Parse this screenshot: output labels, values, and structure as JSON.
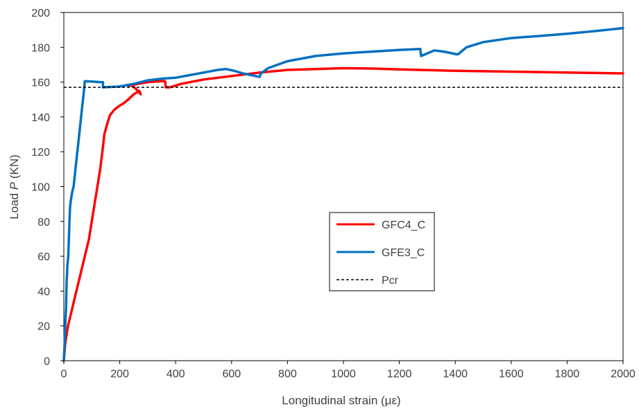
{
  "chart_data": {
    "type": "line",
    "xlabel": "Longitudinal strain (με)",
    "ylabel": {
      "prefix": "Load ",
      "italic": "P",
      "suffix": " (KN)"
    },
    "xlim": [
      0,
      2000
    ],
    "ylim": [
      0,
      200
    ],
    "x_ticks": [
      "0",
      "200",
      "400",
      "600",
      "800",
      "1000",
      "1200",
      "1400",
      "1600",
      "1800",
      "2000"
    ],
    "y_ticks": [
      "0",
      "20",
      "40",
      "60",
      "80",
      "100",
      "120",
      "140",
      "160",
      "180",
      "200"
    ],
    "grid": false,
    "legend_position": "center-right",
    "series": [
      {
        "name": "GFC4_C",
        "color": "#ff0000",
        "style": "solid",
        "points": [
          [
            0,
            0
          ],
          [
            5,
            10
          ],
          [
            15,
            20
          ],
          [
            30,
            30
          ],
          [
            45,
            40
          ],
          [
            60,
            50
          ],
          [
            75,
            60
          ],
          [
            90,
            70
          ],
          [
            100,
            80
          ],
          [
            110,
            90
          ],
          [
            120,
            100
          ],
          [
            130,
            110
          ],
          [
            138,
            120
          ],
          [
            145,
            130
          ],
          [
            155,
            136
          ],
          [
            165,
            141
          ],
          [
            180,
            144
          ],
          [
            195,
            146
          ],
          [
            215,
            148
          ],
          [
            230,
            150
          ],
          [
            250,
            153
          ],
          [
            270,
            155
          ],
          [
            275,
            153
          ],
          [
            265,
            155
          ],
          [
            245,
            158
          ],
          [
            230,
            158
          ],
          [
            300,
            160
          ],
          [
            350,
            160.5
          ],
          [
            362,
            160.5
          ],
          [
            365,
            157
          ],
          [
            380,
            157
          ],
          [
            420,
            159
          ],
          [
            500,
            161.5
          ],
          [
            600,
            163.5
          ],
          [
            700,
            165.5
          ],
          [
            800,
            167
          ],
          [
            900,
            167.5
          ],
          [
            1000,
            168
          ],
          [
            1100,
            167.8
          ],
          [
            1200,
            167.3
          ],
          [
            1400,
            166.5
          ],
          [
            1600,
            166
          ],
          [
            1800,
            165.5
          ],
          [
            2000,
            165
          ]
        ]
      },
      {
        "name": "GFE3_C",
        "color": "#0070c0",
        "style": "solid",
        "points": [
          [
            0,
            0
          ],
          [
            3,
            10
          ],
          [
            5,
            20
          ],
          [
            8,
            30
          ],
          [
            10,
            45
          ],
          [
            13,
            55
          ],
          [
            16,
            60
          ],
          [
            18,
            70
          ],
          [
            20,
            80
          ],
          [
            22,
            88
          ],
          [
            25,
            92
          ],
          [
            30,
            97
          ],
          [
            35,
            100
          ],
          [
            45,
            115
          ],
          [
            55,
            130
          ],
          [
            65,
            145
          ],
          [
            72,
            155
          ],
          [
            75,
            160.5
          ],
          [
            100,
            160.3
          ],
          [
            130,
            160
          ],
          [
            140,
            160
          ],
          [
            140,
            157
          ],
          [
            200,
            157.5
          ],
          [
            250,
            159
          ],
          [
            300,
            161
          ],
          [
            350,
            162
          ],
          [
            400,
            162.5
          ],
          [
            450,
            164
          ],
          [
            500,
            165.5
          ],
          [
            550,
            167
          ],
          [
            580,
            167.5
          ],
          [
            610,
            166.5
          ],
          [
            640,
            165
          ],
          [
            670,
            164
          ],
          [
            700,
            163
          ],
          [
            705,
            165
          ],
          [
            730,
            168
          ],
          [
            800,
            172
          ],
          [
            900,
            175
          ],
          [
            1000,
            176.5
          ],
          [
            1100,
            177.5
          ],
          [
            1200,
            178.5
          ],
          [
            1275,
            179
          ],
          [
            1278,
            175
          ],
          [
            1300,
            176.5
          ],
          [
            1325,
            178.2
          ],
          [
            1360,
            177.5
          ],
          [
            1405,
            176
          ],
          [
            1410,
            176
          ],
          [
            1440,
            180
          ],
          [
            1500,
            183
          ],
          [
            1600,
            185.3
          ],
          [
            1700,
            186.5
          ],
          [
            1800,
            187.8
          ],
          [
            1900,
            189.3
          ],
          [
            2000,
            191
          ]
        ]
      },
      {
        "name": "Pcr",
        "color": "#000000",
        "style": "dashed",
        "points": [
          [
            0,
            157
          ],
          [
            2000,
            157
          ]
        ]
      }
    ]
  }
}
